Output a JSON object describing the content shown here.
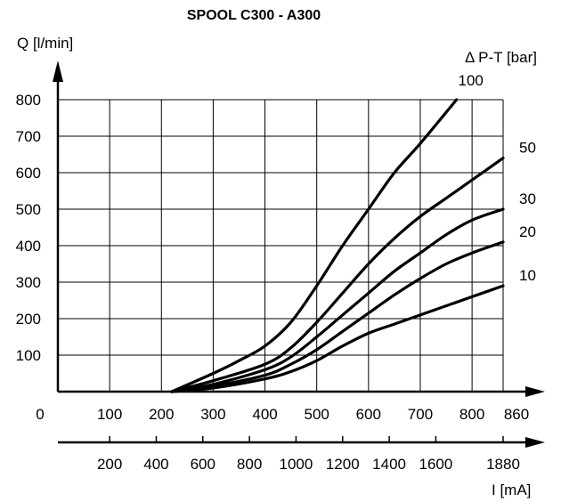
{
  "chart_data": {
    "type": "line",
    "title": "SPOOL C300 - A300",
    "ylabel": "Q [l/min]",
    "xlabel": "I [mA]",
    "legend_title": "Δ P-T  [bar]",
    "x_axis_origin_label": "0",
    "xlim": [
      0,
      860
    ],
    "ylim": [
      0,
      800
    ],
    "grid": true,
    "x_ticks": [
      100,
      200,
      300,
      400,
      500,
      600,
      700,
      800
    ],
    "x_end_label": "860",
    "y_ticks": [
      100,
      200,
      300,
      400,
      500,
      600,
      700,
      800
    ],
    "secondary_x_ticks": [
      {
        "at": 100,
        "label": "200"
      },
      {
        "at": 190,
        "label": "400"
      },
      {
        "at": 280,
        "label": "600"
      },
      {
        "at": 370,
        "label": "800"
      },
      {
        "at": 460,
        "label": "1000"
      },
      {
        "at": 550,
        "label": "1200"
      },
      {
        "at": 640,
        "label": "1400"
      },
      {
        "at": 730,
        "label": "1600"
      },
      {
        "at": 860,
        "label": "1880"
      }
    ],
    "series": [
      {
        "name": "100",
        "x": [
          220,
          300,
          350,
          400,
          450,
          500,
          550,
          600,
          650,
          700,
          770
        ],
        "y": [
          0,
          50,
          85,
          125,
          190,
          290,
          400,
          500,
          600,
          680,
          800
        ]
      },
      {
        "name": "50",
        "x": [
          220,
          300,
          400,
          450,
          500,
          550,
          600,
          650,
          700,
          750,
          800,
          860
        ],
        "y": [
          0,
          30,
          75,
          120,
          190,
          270,
          350,
          420,
          480,
          530,
          580,
          640
        ]
      },
      {
        "name": "30",
        "x": [
          220,
          300,
          400,
          450,
          500,
          550,
          600,
          650,
          700,
          750,
          800,
          860
        ],
        "y": [
          0,
          20,
          60,
          95,
          150,
          210,
          270,
          330,
          380,
          430,
          470,
          500
        ]
      },
      {
        "name": "20",
        "x": [
          220,
          300,
          400,
          450,
          500,
          550,
          600,
          650,
          700,
          750,
          800,
          860
        ],
        "y": [
          0,
          15,
          45,
          75,
          115,
          165,
          215,
          265,
          310,
          350,
          380,
          410
        ]
      },
      {
        "name": "10",
        "x": [
          220,
          300,
          400,
          450,
          500,
          550,
          600,
          650,
          700,
          750,
          800,
          860
        ],
        "y": [
          0,
          10,
          35,
          55,
          85,
          125,
          160,
          185,
          210,
          235,
          260,
          290
        ]
      }
    ]
  }
}
